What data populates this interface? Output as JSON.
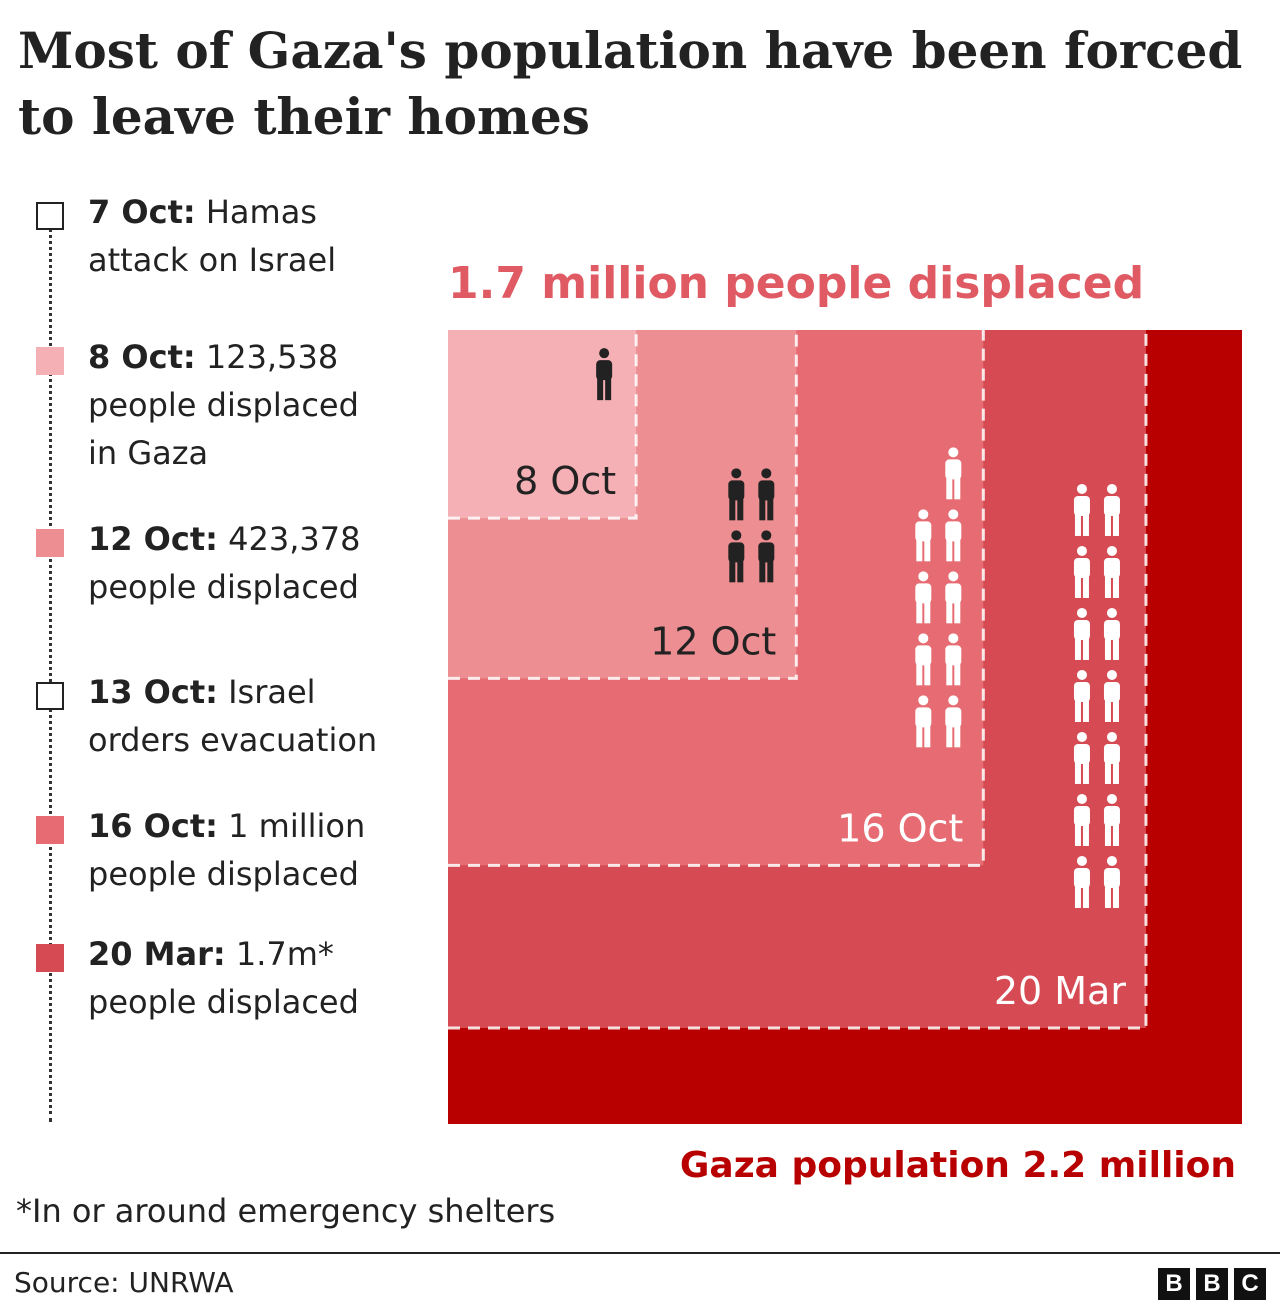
{
  "title": "Most of Gaza's population have been forced to leave their homes",
  "timeline": [
    {
      "date": "7 Oct:",
      "text": " Hamas attack on Israel",
      "marker": "empty"
    },
    {
      "date": "8 Oct:",
      "text": " 123,538 people displaced in Gaza",
      "marker": "#f4b0b5"
    },
    {
      "date": "12 Oct:",
      "text": " 423,378 people displaced",
      "marker": "#ec8e92"
    },
    {
      "date": "13 Oct:",
      "text": " Israel orders evacuation",
      "marker": "empty"
    },
    {
      "date": "16 Oct:",
      "text": " 1 million people displaced",
      "marker": "#e66b72"
    },
    {
      "date": "20 Mar:",
      "text": " 1.7m* people displaced",
      "marker": "#d64b53"
    }
  ],
  "chart_data": {
    "type": "nested-area",
    "title": "1.7 million people displaced",
    "total": {
      "label": "Gaza population 2.2 million",
      "value": 2200000,
      "color": "#b80000"
    },
    "series": [
      {
        "label": "8 Oct",
        "value": 123538,
        "color": "#f4b0b5",
        "icon_count": 1,
        "icon_color": "#222222",
        "label_color": "#222222"
      },
      {
        "label": "12 Oct",
        "value": 423378,
        "color": "#ec8e92",
        "icon_count": 4,
        "icon_color": "#222222",
        "label_color": "#222222"
      },
      {
        "label": "16 Oct",
        "value": 1000000,
        "color": "#e66b72",
        "icon_count": 9,
        "icon_color": "#ffffff",
        "label_color": "#ffffff"
      },
      {
        "label": "20 Mar",
        "value": 1700000,
        "color": "#d64b53",
        "icon_count": 14,
        "icon_color": "#ffffff",
        "label_color": "#ffffff"
      }
    ]
  },
  "footnote": "*In or around emergency shelters",
  "source": "Source: UNRWA",
  "logo": [
    "B",
    "B",
    "C"
  ]
}
